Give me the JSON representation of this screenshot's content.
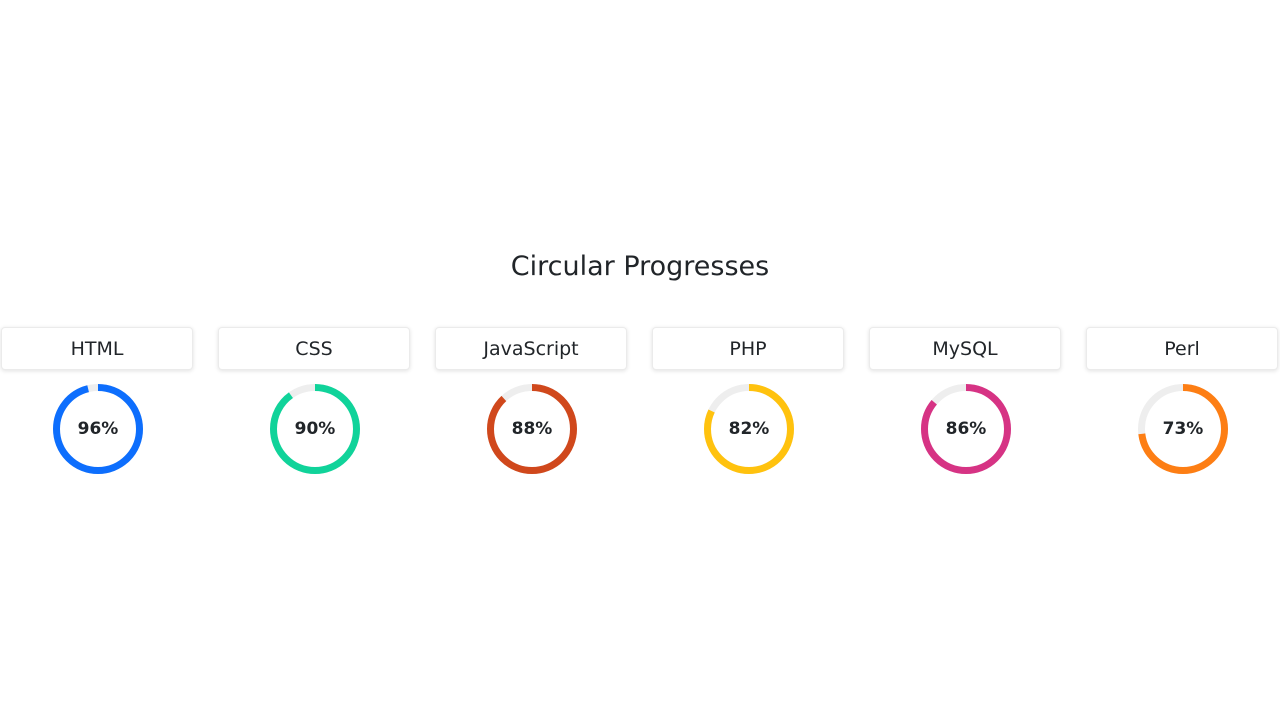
{
  "title": "Circular Progresses",
  "track_color": "#eeeeee",
  "items": [
    {
      "label": "HTML",
      "percent_text": "96%",
      "value": 96,
      "color": "#0d6efd"
    },
    {
      "label": "CSS",
      "percent_text": "90%",
      "value": 90,
      "color": "#10d39a"
    },
    {
      "label": "JavaScript",
      "percent_text": "88%",
      "value": 88,
      "color": "#d0481c"
    },
    {
      "label": "PHP",
      "percent_text": "82%",
      "value": 82,
      "color": "#ffc20e"
    },
    {
      "label": "MySQL",
      "percent_text": "86%",
      "value": 86,
      "color": "#d63384"
    },
    {
      "label": "Perl",
      "percent_text": "73%",
      "value": 73,
      "color": "#fd7e14"
    }
  ]
}
